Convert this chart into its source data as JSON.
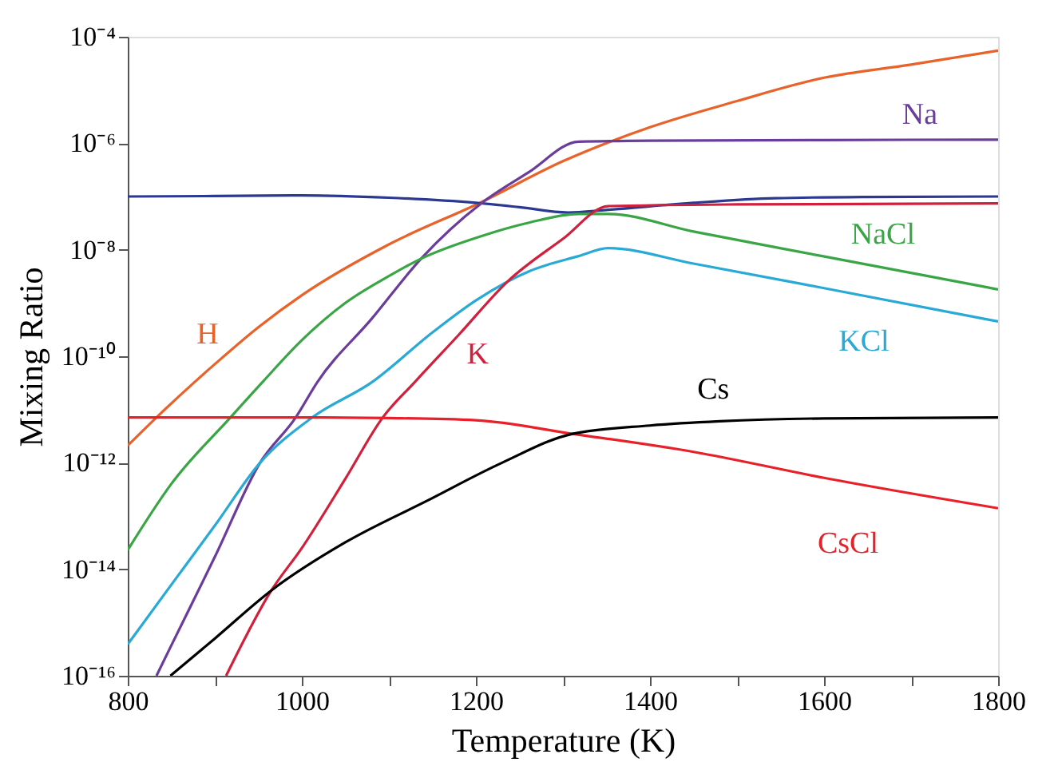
{
  "chart_data": {
    "type": "line",
    "xlabel": "Temperature (K)",
    "ylabel": "Mixing Ratio",
    "log": "y",
    "grid": false,
    "legend": false,
    "marker": "none",
    "line_style": "solid",
    "xlim": [
      800,
      1800
    ],
    "xticks": [
      800,
      {
        "value": 900,
        "label": null
      },
      1000,
      {
        "value": 1100,
        "label": null
      },
      1200,
      {
        "value": 1300,
        "label": null
      },
      1400,
      {
        "value": 1500,
        "label": null
      },
      1600,
      {
        "value": 1700,
        "label": null
      },
      1800
    ],
    "ylim": [
      1e-16,
      0.0001
    ],
    "yticks": [
      {
        "value": 1e-16,
        "label": "10⁻¹⁶"
      },
      {
        "value": 1e-14,
        "label": "10⁻¹⁴"
      },
      {
        "value": 1e-12,
        "label": "10⁻¹²"
      },
      {
        "value": 1e-10,
        "label": "10⁻¹⁰"
      },
      {
        "value": 1e-08,
        "label": "10⁻⁸"
      },
      {
        "value": 1e-06,
        "label": "10⁻⁶"
      },
      {
        "value": 0.0001,
        "label": "10⁻⁴"
      }
    ],
    "series": [
      {
        "name": "H",
        "color": "#e8622a",
        "x": [
          800,
          833,
          877,
          900,
          950,
          1000,
          1100,
          1206,
          1300,
          1400,
          1500,
          1600,
          1700,
          1800
        ],
        "values": [
          2.1e-12,
          7.1e-12,
          3.3e-11,
          7.1e-11,
          3.5e-10,
          1.4e-09,
          1.26e-08,
          7.8e-08,
          4.6e-07,
          2e-06,
          6.2e-06,
          1.7e-05,
          3e-05,
          5.5e-05
        ]
      },
      {
        "color": "#2b3990",
        "x": [
          800,
          900,
          1000,
          1100,
          1200,
          1250,
          1306,
          1350,
          1450,
          1544,
          1650,
          1800
        ],
        "values": [
          1e-07,
          1.02e-07,
          1.05e-07,
          9.5e-08,
          7.6e-08,
          6.3e-08,
          5e-08,
          5.6e-08,
          7.6e-08,
          9.3e-08,
          9.8e-08,
          1e-07
        ]
      },
      {
        "name": "Na",
        "color": "#6a3d9a",
        "x": [
          833,
          850,
          900,
          952,
          993,
          1018,
          1080,
          1137,
          1206,
          1260,
          1318,
          1400,
          1600,
          1800
        ],
        "values": [
          1e-16,
          3.7e-16,
          1.7e-14,
          1e-12,
          7.1e-12,
          3.3e-11,
          5e-10,
          6.8e-09,
          7.4e-08,
          2.8e-07,
          1.07e-06,
          1.12e-06,
          1.15e-06,
          1.17e-06
        ]
      },
      {
        "name": "NaCl",
        "color": "#3aa545",
        "x": [
          800,
          850,
          918,
          955,
          1000,
          1050,
          1100,
          1137,
          1206,
          1260,
          1318,
          1352,
          1450,
          1598,
          1800
        ],
        "values": [
          2.3e-14,
          4e-13,
          7.1e-12,
          3.3e-11,
          2e-10,
          1e-09,
          3.2e-09,
          6.8e-09,
          1.8e-08,
          3.2e-08,
          4.7e-08,
          4.7e-08,
          2.2e-08,
          7.6e-09,
          1.8e-09
        ]
      },
      {
        "name": "KCl",
        "color": "#29a9d6",
        "x": [
          800,
          850,
          900,
          952,
          1012,
          1081,
          1150,
          1200,
          1262,
          1318,
          1352,
          1450,
          1600,
          1800
        ],
        "values": [
          3.9e-16,
          5.1e-15,
          6.6e-14,
          1e-12,
          7.1e-12,
          3.3e-11,
          2.8e-10,
          1.12e-09,
          4e-09,
          7.6e-09,
          1.07e-08,
          5.5e-09,
          1.9e-09,
          4.5e-10
        ]
      },
      {
        "name": "K",
        "color": "#d0203c",
        "x": [
          913,
          965,
          1000,
          1050,
          1093,
          1130,
          1180,
          1236,
          1300,
          1352,
          1500,
          1800
        ],
        "values": [
          1e-16,
          4e-15,
          2.5e-14,
          5e-13,
          7.1e-12,
          3.3e-11,
          2.5e-10,
          2.5e-09,
          1.6e-08,
          6.6e-08,
          7.1e-08,
          7.4e-08
        ]
      },
      {
        "name": "CsCl",
        "color": "#e8202a",
        "x": [
          800,
          1000,
          1100,
          1200,
          1311,
          1450,
          1600,
          1800
        ],
        "values": [
          7.1e-12,
          7.1e-12,
          6.9e-12,
          6.3e-12,
          3.5e-12,
          1.6e-12,
          5.2e-13,
          1.4e-13
        ]
      },
      {
        "name": "Cs",
        "color": "#000000",
        "x": [
          849,
          900,
          965,
          1050,
          1143,
          1230,
          1311,
          1400,
          1480,
          1600,
          1800
        ],
        "values": [
          1e-16,
          5e-16,
          4e-15,
          3.2e-14,
          1.9e-13,
          1e-12,
          3.5e-12,
          5e-12,
          6e-12,
          6.8e-12,
          7.1e-12
        ]
      }
    ]
  }
}
